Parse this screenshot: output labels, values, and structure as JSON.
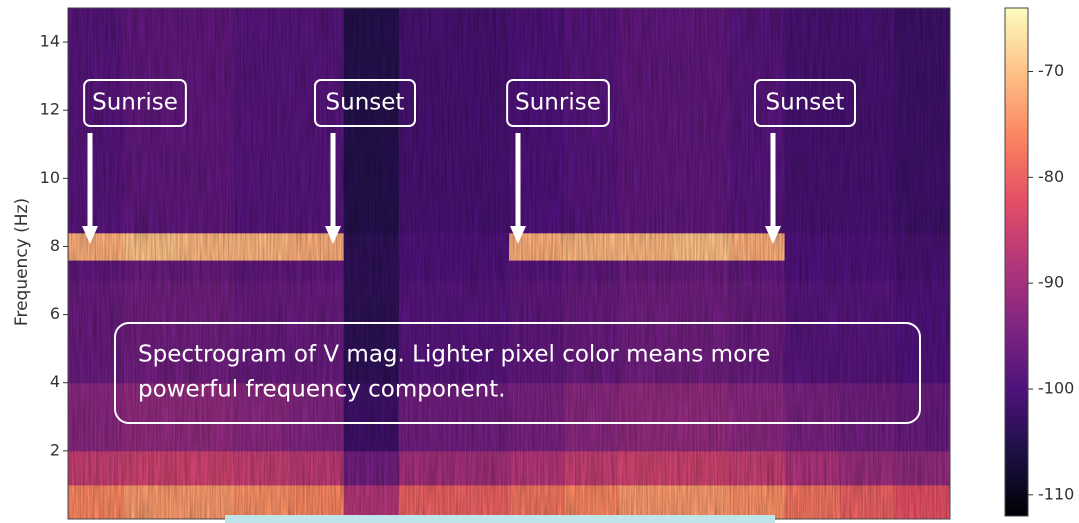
{
  "chart_data": {
    "type": "spectrogram",
    "ylabel": "Frequency (Hz)",
    "colormap": "magma",
    "ylim": [
      0,
      15
    ],
    "yticks": [
      2,
      4,
      6,
      8,
      10,
      12,
      14
    ],
    "y_edges": [
      0,
      1,
      2,
      4,
      7,
      7.6,
      8.4,
      15
    ],
    "values": [
      [
        -76,
        -74,
        -74,
        -75,
        -76,
        -88,
        -80,
        -80,
        -78,
        -76,
        -74,
        -74,
        -75,
        -78,
        -80,
        -82
      ],
      [
        -86,
        -85,
        -85,
        -86,
        -87,
        -96,
        -90,
        -90,
        -88,
        -86,
        -85,
        -85,
        -86,
        -89,
        -91,
        -92
      ],
      [
        -93,
        -92,
        -92,
        -93,
        -94,
        -102,
        -96,
        -96,
        -95,
        -93,
        -92,
        -92,
        -93,
        -95,
        -96,
        -97
      ],
      [
        -97,
        -96,
        -96,
        -97,
        -97,
        -104,
        -99,
        -99,
        -98,
        -97,
        -96,
        -96,
        -97,
        -99,
        -99,
        -100
      ],
      [
        -98,
        -97,
        -97,
        -98,
        -98,
        -104,
        -100,
        -100,
        -99,
        -98,
        -97,
        -97,
        -98,
        -100,
        -100,
        -101
      ],
      [
        -72,
        -70,
        -71,
        -71,
        -72,
        -104,
        -100,
        -100,
        -72,
        -71,
        -71,
        -70,
        -72,
        -100,
        -100,
        -101
      ],
      [
        -99,
        -98,
        -98,
        -99,
        -99,
        -105,
        -101,
        -101,
        -100,
        -99,
        -98,
        -98,
        -99,
        -101,
        -101,
        -102
      ]
    ],
    "clim": [
      -112,
      -64
    ],
    "cticks": [
      -70,
      -80,
      -90,
      -100,
      -110
    ],
    "annotations": [
      "Sunrise",
      "Sunset",
      "Sunrise",
      "Sunset"
    ],
    "note": [
      "Spectrogram of V mag. Lighter pixel color means more",
      "powerful frequency component."
    ]
  }
}
